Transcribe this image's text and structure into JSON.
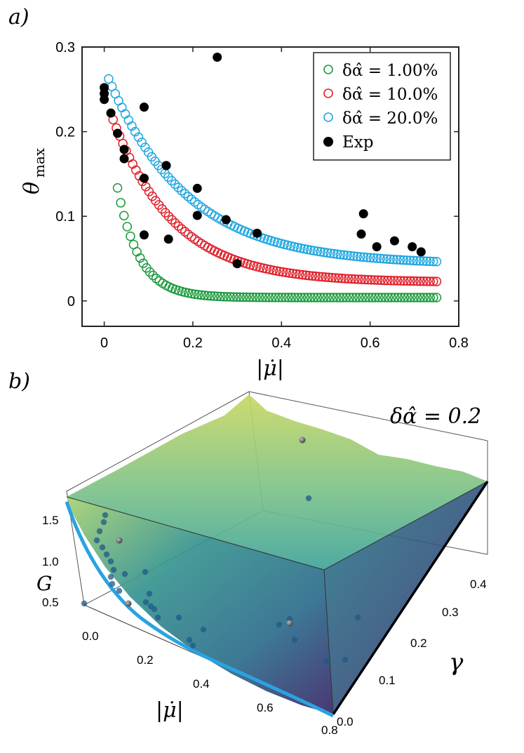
{
  "panel_a": {
    "label": "a)",
    "chart_data": {
      "type": "scatter",
      "xlabel": "|μ̇|",
      "ylabel_main": "θ",
      "ylabel_sub": "max",
      "xlim": [
        -0.05,
        0.8
      ],
      "ylim": [
        -0.03,
        0.3
      ],
      "xticks": [
        0,
        0.2,
        0.4,
        0.6,
        0.8
      ],
      "xtick_labels": [
        "0",
        "0.2",
        "0.4",
        "0.6",
        "0.8"
      ],
      "yticks": [
        0,
        0.1,
        0.2,
        0.3
      ],
      "ytick_labels": [
        "0",
        "0.1",
        "0.2",
        "0.3"
      ],
      "legend_position": "top-right",
      "series": [
        {
          "name": "δα̂ = 1.00%",
          "color": "#1a9a3c",
          "marker": "open-circle",
          "model": {
            "a": 0.236,
            "k": 20.0,
            "c": 0.004
          },
          "x_start": 0.03,
          "x_end": 0.75,
          "n_points": 100
        },
        {
          "name": "δα̂ = 10.0%",
          "color": "#e0202a",
          "marker": "open-circle",
          "model": {
            "a": 0.222,
            "k": 7.2,
            "c": 0.022
          },
          "x_start": 0.02,
          "x_end": 0.75,
          "n_points": 100
        },
        {
          "name": "δα̂ = 20.0%",
          "color": "#1fa6e0",
          "marker": "open-circle",
          "model": {
            "a": 0.232,
            "k": 5.6,
            "c": 0.043
          },
          "x_start": 0.01,
          "x_end": 0.75,
          "n_points": 100
        },
        {
          "name": "Exp",
          "color": "#000000",
          "marker": "filled-circle",
          "points": [
            {
              "x": 0.0,
              "y": 0.252
            },
            {
              "x": 0.0,
              "y": 0.245
            },
            {
              "x": 0.0,
              "y": 0.238
            },
            {
              "x": 0.015,
              "y": 0.222
            },
            {
              "x": 0.03,
              "y": 0.198
            },
            {
              "x": 0.045,
              "y": 0.179
            },
            {
              "x": 0.045,
              "y": 0.168
            },
            {
              "x": 0.09,
              "y": 0.229
            },
            {
              "x": 0.09,
              "y": 0.145
            },
            {
              "x": 0.09,
              "y": 0.078
            },
            {
              "x": 0.14,
              "y": 0.16
            },
            {
              "x": 0.145,
              "y": 0.073
            },
            {
              "x": 0.21,
              "y": 0.133
            },
            {
              "x": 0.21,
              "y": 0.101
            },
            {
              "x": 0.255,
              "y": 0.288
            },
            {
              "x": 0.275,
              "y": 0.096
            },
            {
              "x": 0.3,
              "y": 0.044
            },
            {
              "x": 0.345,
              "y": 0.08
            },
            {
              "x": 0.58,
              "y": 0.079
            },
            {
              "x": 0.585,
              "y": 0.103
            },
            {
              "x": 0.615,
              "y": 0.064
            },
            {
              "x": 0.655,
              "y": 0.071
            },
            {
              "x": 0.695,
              "y": 0.064
            },
            {
              "x": 0.715,
              "y": 0.058
            }
          ]
        }
      ]
    }
  },
  "panel_b": {
    "label": "b)",
    "annotation": "δα̂ = 0.2",
    "chart_data": {
      "type": "surface",
      "xlabel": "|μ̇|",
      "ylabel": "γ",
      "zlabel": "G",
      "x_ticks": [
        "0.0",
        "0.2",
        "0.4",
        "0.6",
        "0.8"
      ],
      "y_ticks": [
        "0.0",
        "0.1",
        "0.2",
        "0.3",
        "0.4"
      ],
      "z_ticks": [
        "0.5",
        "1.0",
        "1.5"
      ],
      "surface_color_low": "#3b2a6e",
      "surface_color_high": "#c8d862",
      "boundary_curve_color": "#29a3e0",
      "points_color": "#1f5a8a",
      "points_count": 30
    }
  }
}
